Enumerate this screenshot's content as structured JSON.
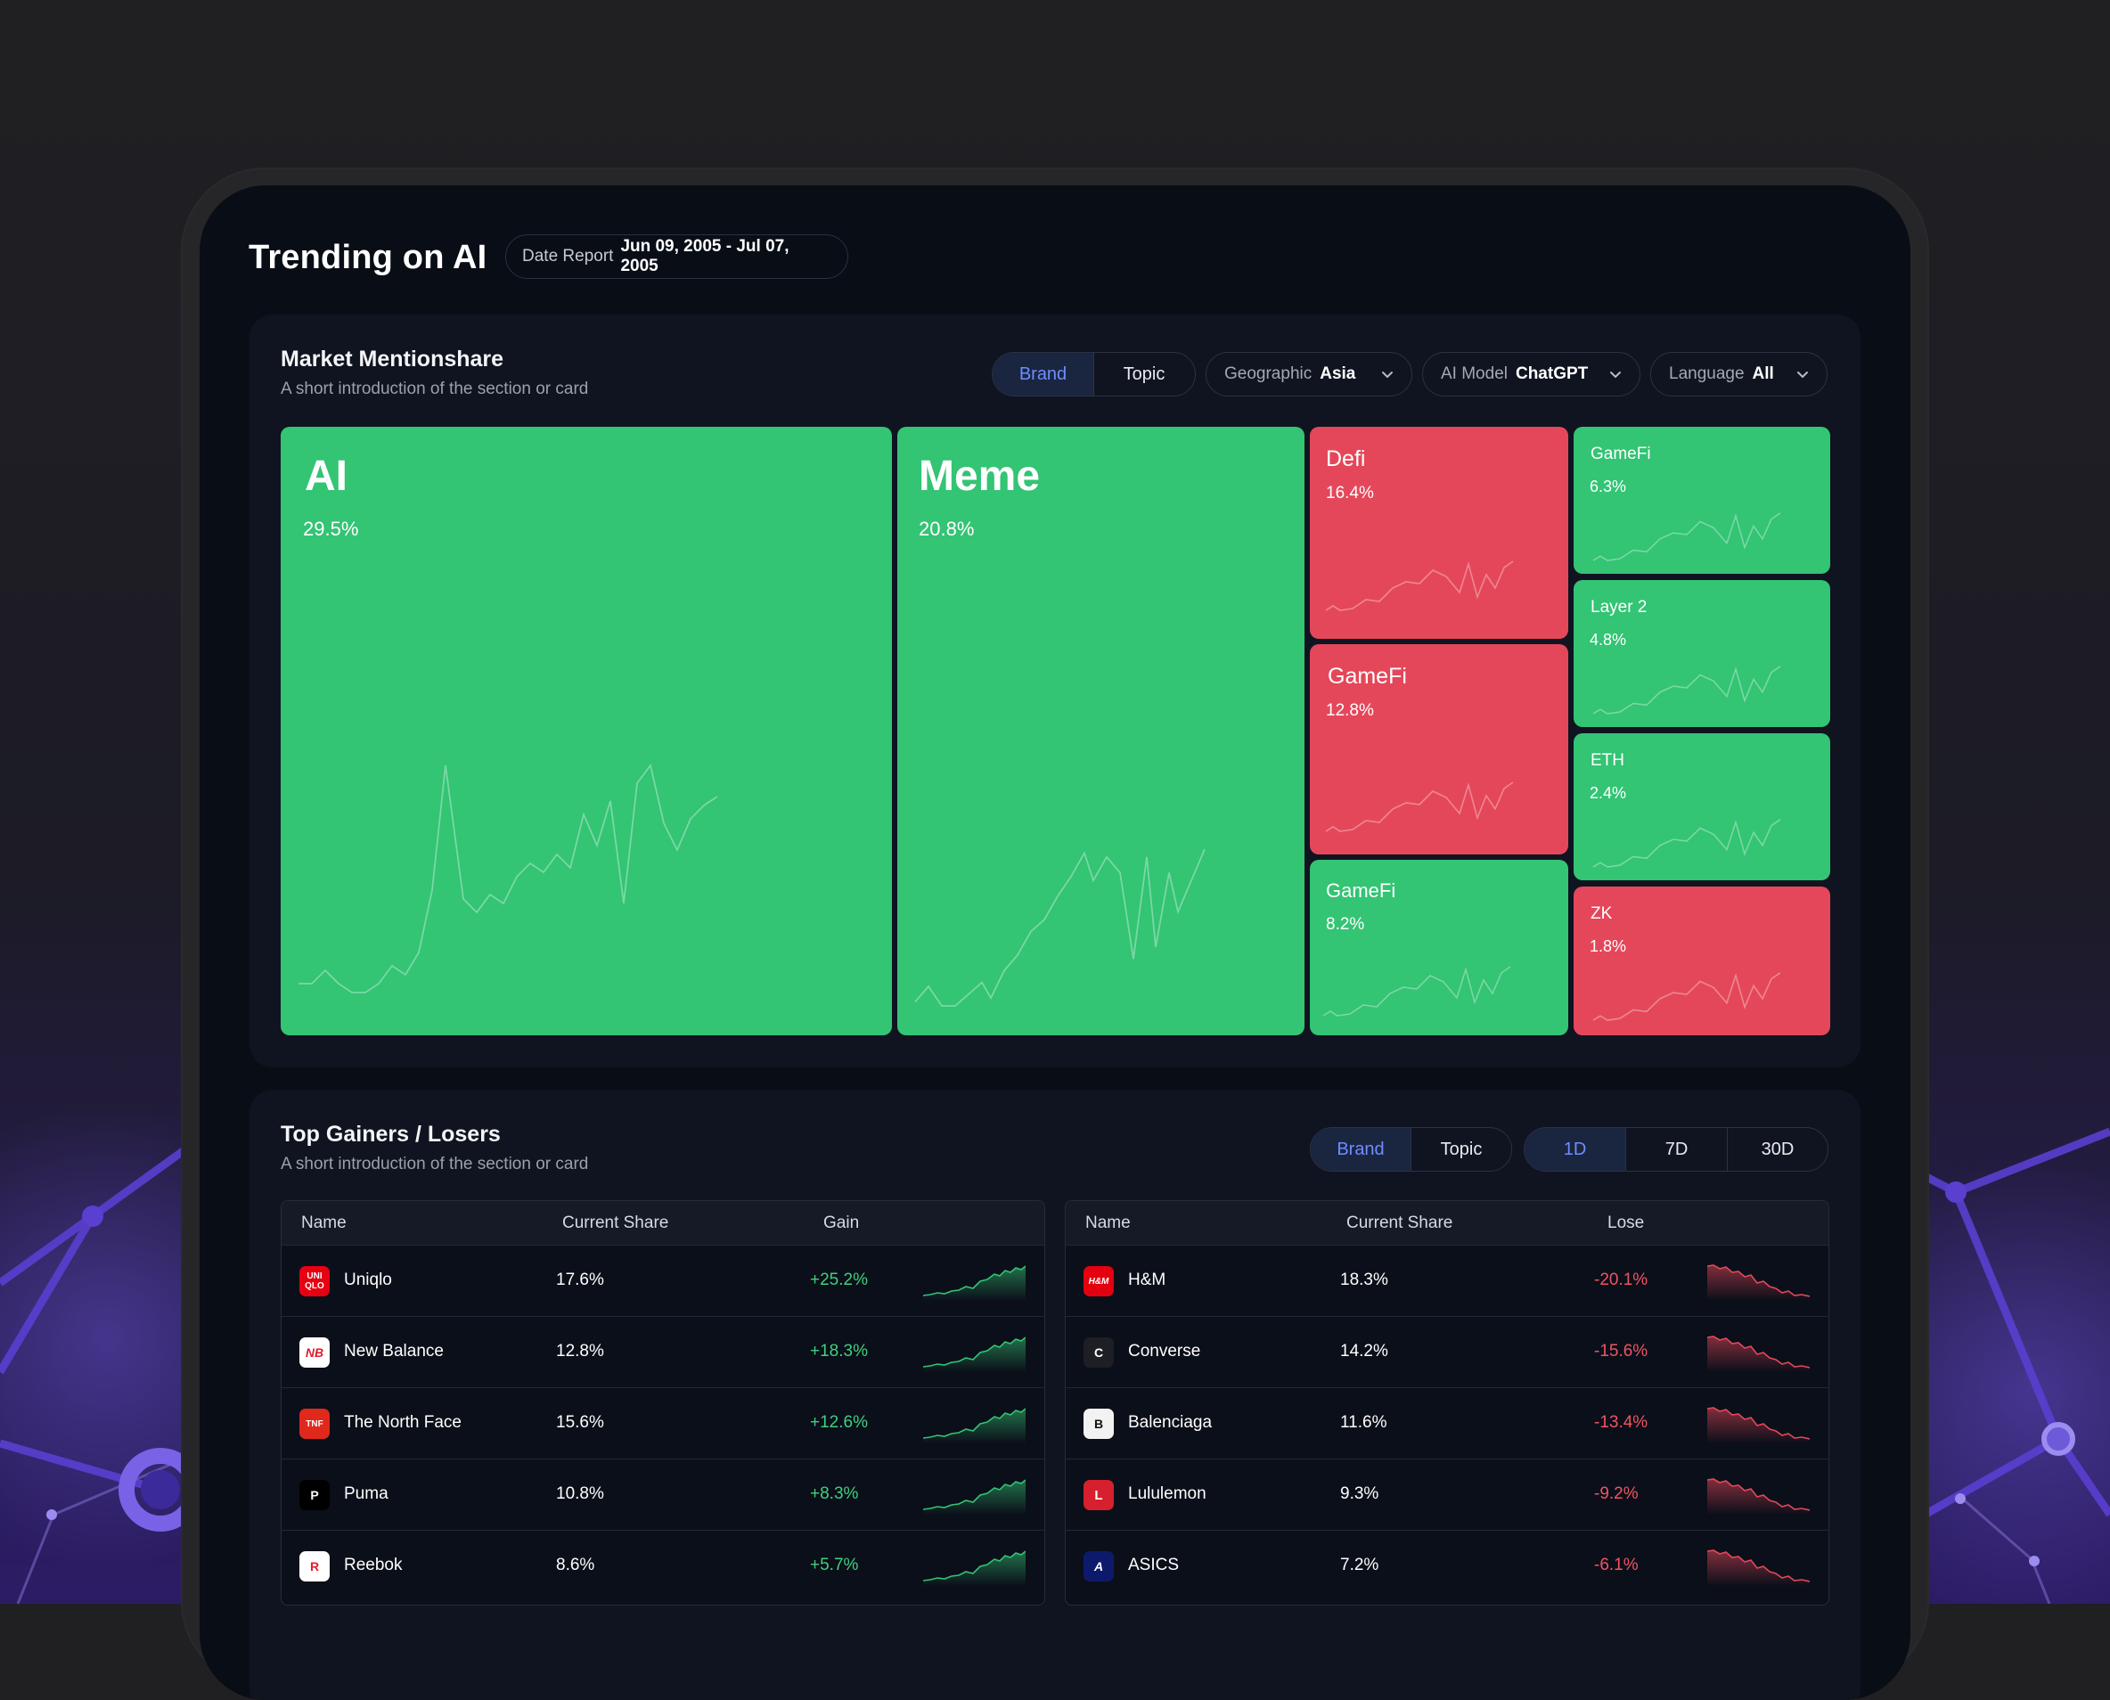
{
  "page": {
    "title": "Trending on AI",
    "date_report_label": "Date Report",
    "date_report_value": "Jun 09, 2005 - Jul 07, 2005"
  },
  "market": {
    "title": "Market Mentionshare",
    "subtitle": "A short introduction of the section or card",
    "toggle": {
      "brand": "Brand",
      "topic": "Topic",
      "active": "Brand"
    },
    "filters": {
      "geographic": {
        "label": "Geographic",
        "value": "Asia"
      },
      "ai_model": {
        "label": "AI Model",
        "value": "ChatGPT"
      },
      "language": {
        "label": "Language",
        "value": "All"
      }
    },
    "tiles": [
      {
        "name": "AI",
        "share": "29.5%",
        "trend": "up"
      },
      {
        "name": "Meme",
        "share": "20.8%",
        "trend": "up"
      },
      {
        "name": "Defi",
        "share": "16.4%",
        "trend": "down"
      },
      {
        "name": "GameFi",
        "share": "12.8%",
        "trend": "down"
      },
      {
        "name": "GameFi",
        "share": "8.2%",
        "trend": "up"
      },
      {
        "name": "GameFi",
        "share": "6.3%",
        "trend": "up"
      },
      {
        "name": "Layer 2",
        "share": "4.8%",
        "trend": "up"
      },
      {
        "name": "ETH",
        "share": "2.4%",
        "trend": "up"
      },
      {
        "name": "ZK",
        "share": "1.8%",
        "trend": "down"
      }
    ]
  },
  "movers": {
    "title": "Top Gainers / Losers",
    "subtitle": "A short introduction of the section or card",
    "toggle": {
      "brand": "Brand",
      "topic": "Topic",
      "active": "Brand"
    },
    "range": {
      "d1": "1D",
      "d7": "7D",
      "d30": "30D",
      "active": "1D"
    },
    "gainers": {
      "headers": {
        "name": "Name",
        "share": "Current Share",
        "change": "Gain"
      },
      "rows": [
        {
          "name": "Uniqlo",
          "share": "17.6%",
          "change": "+25.2%",
          "logo": "UNI QLO"
        },
        {
          "name": "New Balance",
          "share": "12.8%",
          "change": "+18.3%",
          "logo": "NB"
        },
        {
          "name": "The North Face",
          "share": "15.6%",
          "change": "+12.6%",
          "logo": "TNF"
        },
        {
          "name": "Puma",
          "share": "10.8%",
          "change": "+8.3%",
          "logo": "P"
        },
        {
          "name": "Reebok",
          "share": "8.6%",
          "change": "+5.7%",
          "logo": "R"
        }
      ]
    },
    "losers": {
      "headers": {
        "name": "Name",
        "share": "Current Share",
        "change": "Lose"
      },
      "rows": [
        {
          "name": "H&M",
          "share": "18.3%",
          "change": "-20.1%",
          "logo": "H&M"
        },
        {
          "name": "Converse",
          "share": "14.2%",
          "change": "-15.6%",
          "logo": "C"
        },
        {
          "name": "Balenciaga",
          "share": "11.6%",
          "change": "-13.4%",
          "logo": "B"
        },
        {
          "name": "Lululemon",
          "share": "9.3%",
          "change": "-9.2%",
          "logo": "L"
        },
        {
          "name": "ASICS",
          "share": "7.2%",
          "change": "-6.1%",
          "logo": "A"
        }
      ]
    }
  },
  "colors": {
    "up": "#33c474",
    "down": "#e5475a",
    "accent": "#6f8dff",
    "background": "#090d16"
  }
}
